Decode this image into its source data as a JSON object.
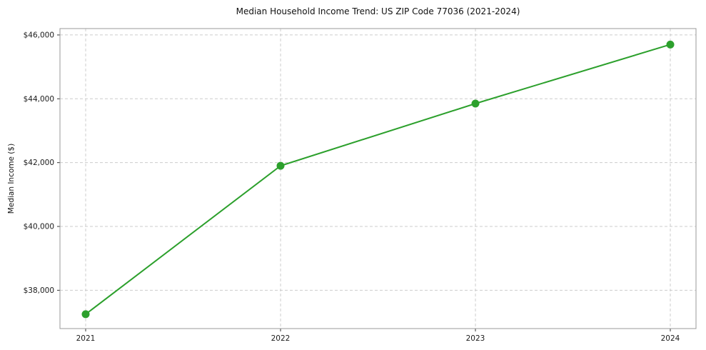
{
  "chart_data": {
    "type": "line",
    "title": "Median Household Income Trend: US ZIP Code 77036 (2021-2024)",
    "ylabel": "Median Income ($)",
    "xlabel": "",
    "categories": [
      "2021",
      "2022",
      "2023",
      "2024"
    ],
    "values": [
      37250,
      41900,
      43850,
      45700
    ],
    "yticks": [
      38000,
      40000,
      42000,
      44000,
      46000
    ],
    "ytick_labels": [
      "$38,000",
      "$40,000",
      "$42,000",
      "$44,000",
      "$46,000"
    ],
    "ylim": [
      36800,
      46200
    ],
    "grid": true,
    "grid_style": "dashed",
    "legend_position": "none",
    "line_color": "#2ca02c",
    "marker_color": "#2ca02c",
    "marker_shape": "circle",
    "grid_color": "#cccccc",
    "axis_color": "#9a9a9a",
    "tick_color": "#333333",
    "text_color": "#1a1a1a",
    "background_color": "#ffffff"
  }
}
